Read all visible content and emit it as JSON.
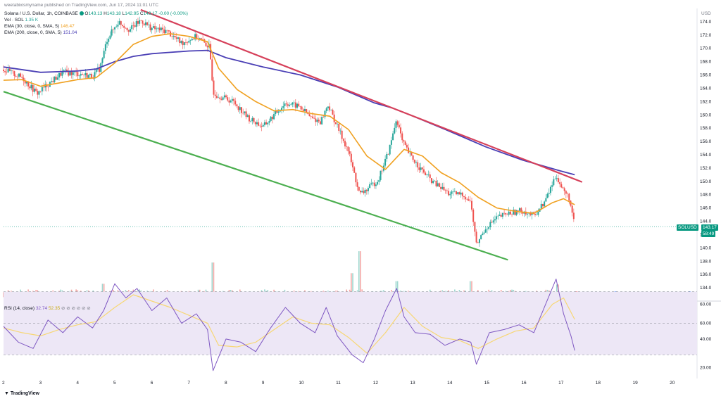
{
  "watermark": "weetabixismyname published on TradingView.com, Jun 17, 2024 11:01 UTC",
  "legend": {
    "symbol": "Solana / U.S. Dollar, 1h, COINBASE",
    "o_label": "O",
    "o": "143.13",
    "h_label": "H",
    "h": "143.18",
    "l_label": "L",
    "l": "142.95",
    "c_label": "C",
    "c": "143.17",
    "chg": "-0.00 (-0.00%)",
    "vol_label": "Vol · SOL",
    "vol": "1.35 K",
    "ema30_label": "EMA (30, close, 0, SMA, 5)",
    "ema30": "146.47",
    "ema200_label": "EMA (200, close, 0, SMA, 5)",
    "ema200": "151.04",
    "rsi_label": "RSI (14, close)",
    "rsi": "32.74",
    "rsi_ma": "52.35"
  },
  "currency": "USD",
  "price_badge": {
    "symbol": "SOLUSD",
    "price": "143.17",
    "timer": "58:49"
  },
  "footer_brand": "TradingView",
  "colors": {
    "up": "#26a69a",
    "down": "#ef5350",
    "ema30": "#f0a121",
    "ema200": "#4a3fb5",
    "upper_trend": "#d6405a",
    "lower_trend": "#4caf50",
    "rsi_line": "#7e57c2",
    "rsi_ma": "#f7d774",
    "rsi_band": "#ede7f6"
  },
  "chart_data": [
    {
      "type": "candlestick",
      "title": "Solana / U.S. Dollar, 1h, COINBASE",
      "ylim": [
        132,
        176
      ],
      "y_ticks": [
        134,
        136,
        138,
        140,
        142,
        144,
        146,
        148,
        150,
        152,
        154,
        156,
        158,
        160,
        162,
        164,
        166,
        168,
        170,
        172,
        174
      ],
      "x_ticks": [
        "2",
        "3",
        "4",
        "5",
        "6",
        "7",
        "8",
        "9",
        "10",
        "11",
        "12",
        "13",
        "14",
        "15",
        "16",
        "17",
        "18",
        "19",
        "20"
      ],
      "x_tick_values": [
        2,
        3,
        4,
        5,
        6,
        7,
        8,
        9,
        10,
        11,
        12,
        13,
        14,
        15,
        16,
        17,
        18,
        19,
        20
      ],
      "xlim": [
        2,
        20.7
      ],
      "price_path": [
        [
          2.0,
          166.8
        ],
        [
          2.5,
          165.6
        ],
        [
          2.9,
          163.2
        ],
        [
          3.2,
          164.6
        ],
        [
          3.6,
          166.4
        ],
        [
          4.0,
          166.2
        ],
        [
          4.4,
          165.8
        ],
        [
          4.6,
          167.0
        ],
        [
          4.8,
          171.5
        ],
        [
          5.1,
          174.0
        ],
        [
          5.4,
          172.8
        ],
        [
          5.7,
          174.2
        ],
        [
          6.0,
          173.0
        ],
        [
          6.4,
          172.6
        ],
        [
          6.8,
          170.8
        ],
        [
          7.2,
          171.8
        ],
        [
          7.55,
          170.2
        ],
        [
          7.65,
          163.5
        ],
        [
          7.75,
          163.0
        ],
        [
          8.2,
          162.0
        ],
        [
          8.6,
          159.5
        ],
        [
          9.0,
          158.2
        ],
        [
          9.3,
          160.0
        ],
        [
          9.6,
          161.8
        ],
        [
          10.0,
          161.2
        ],
        [
          10.3,
          159.5
        ],
        [
          10.55,
          159.0
        ],
        [
          10.75,
          161.5
        ],
        [
          10.9,
          159.5
        ],
        [
          11.3,
          154.5
        ],
        [
          11.6,
          148.0
        ],
        [
          11.8,
          148.8
        ],
        [
          12.1,
          150.2
        ],
        [
          12.4,
          154.8
        ],
        [
          12.6,
          159.5
        ],
        [
          12.75,
          156.0
        ],
        [
          12.95,
          154.0
        ],
        [
          13.3,
          151.5
        ],
        [
          13.6,
          149.8
        ],
        [
          14.0,
          148.2
        ],
        [
          14.4,
          148.0
        ],
        [
          14.6,
          146.8
        ],
        [
          14.75,
          140.5
        ],
        [
          15.0,
          143.0
        ],
        [
          15.3,
          144.5
        ],
        [
          15.6,
          145.2
        ],
        [
          16.0,
          145.6
        ],
        [
          16.3,
          144.8
        ],
        [
          16.6,
          147.0
        ],
        [
          16.9,
          151.0
        ],
        [
          17.05,
          149.0
        ],
        [
          17.25,
          147.5
        ],
        [
          17.4,
          143.2
        ]
      ],
      "ema30": [
        [
          2.0,
          165.2
        ],
        [
          2.5,
          165.3
        ],
        [
          3.0,
          164.3
        ],
        [
          3.5,
          164.8
        ],
        [
          4.0,
          165.3
        ],
        [
          4.5,
          165.6
        ],
        [
          5.0,
          167.8
        ],
        [
          5.5,
          170.6
        ],
        [
          6.0,
          171.8
        ],
        [
          6.5,
          172.2
        ],
        [
          7.0,
          171.8
        ],
        [
          7.5,
          171.0
        ],
        [
          7.8,
          167.0
        ],
        [
          8.3,
          163.8
        ],
        [
          8.8,
          162.0
        ],
        [
          9.3,
          160.6
        ],
        [
          9.8,
          160.8
        ],
        [
          10.3,
          160.2
        ],
        [
          10.8,
          159.8
        ],
        [
          11.3,
          157.8
        ],
        [
          11.8,
          153.8
        ],
        [
          12.3,
          151.8
        ],
        [
          12.8,
          154.8
        ],
        [
          13.3,
          153.8
        ],
        [
          13.8,
          151.3
        ],
        [
          14.3,
          149.8
        ],
        [
          14.8,
          147.6
        ],
        [
          15.3,
          146.0
        ],
        [
          15.8,
          145.5
        ],
        [
          16.3,
          145.2
        ],
        [
          16.8,
          146.8
        ],
        [
          17.1,
          147.4
        ],
        [
          17.4,
          146.5
        ]
      ],
      "ema200": [
        [
          2.0,
          167.2
        ],
        [
          3.0,
          166.4
        ],
        [
          4.0,
          166.6
        ],
        [
          4.5,
          166.9
        ],
        [
          5.0,
          168.0
        ],
        [
          5.5,
          168.8
        ],
        [
          6.0,
          169.2
        ],
        [
          6.5,
          169.4
        ],
        [
          7.0,
          169.6
        ],
        [
          7.5,
          169.7
        ],
        [
          8.0,
          168.6
        ],
        [
          9.0,
          167.2
        ],
        [
          10.0,
          166.0
        ],
        [
          11.0,
          164.2
        ],
        [
          12.0,
          161.8
        ],
        [
          12.5,
          161.0
        ],
        [
          13.0,
          159.9
        ],
        [
          14.0,
          157.6
        ],
        [
          15.0,
          155.2
        ],
        [
          16.0,
          153.2
        ],
        [
          17.0,
          151.6
        ],
        [
          17.4,
          151.0
        ]
      ],
      "trendlines": [
        {
          "from": [
            5.7,
            175.8
          ],
          "to": [
            17.6,
            149.9
          ],
          "color": "upper_trend"
        },
        {
          "from": [
            2.0,
            163.5
          ],
          "to": [
            15.6,
            138.2
          ],
          "color": "lower_trend"
        }
      ],
      "volume_spikes": [
        [
          7.65,
          137.8
        ],
        [
          11.6,
          139.5
        ],
        [
          11.4,
          136.2
        ],
        [
          12.6,
          135.0
        ],
        [
          14.6,
          135.0
        ],
        [
          4.7,
          134.6
        ],
        [
          16.95,
          134.5
        ]
      ]
    },
    {
      "type": "line",
      "title": "RSI (14, close)",
      "ylim": [
        15,
        64
      ],
      "y_ticks": [
        20,
        40,
        60,
        80
      ],
      "y_tick_values": [
        20,
        40,
        60,
        80
      ],
      "note_ticks_display": "80 shown at top",
      "bands": [
        30,
        70
      ],
      "mid": 50,
      "series": [
        {
          "name": "RSI",
          "points": [
            [
              2.0,
              48
            ],
            [
              2.4,
              38
            ],
            [
              2.8,
              34
            ],
            [
              3.2,
              52
            ],
            [
              3.6,
              44
            ],
            [
              4.0,
              54
            ],
            [
              4.4,
              47
            ],
            [
              4.7,
              58
            ],
            [
              5.0,
              75
            ],
            [
              5.3,
              66
            ],
            [
              5.6,
              72
            ],
            [
              6.0,
              58
            ],
            [
              6.4,
              66
            ],
            [
              6.8,
              50
            ],
            [
              7.2,
              56
            ],
            [
              7.5,
              46
            ],
            [
              7.65,
              20
            ],
            [
              8.0,
              40
            ],
            [
              8.4,
              38
            ],
            [
              8.8,
              32
            ],
            [
              9.2,
              47
            ],
            [
              9.6,
              60
            ],
            [
              10.0,
              50
            ],
            [
              10.4,
              44
            ],
            [
              10.7,
              60
            ],
            [
              11.0,
              42
            ],
            [
              11.4,
              30
            ],
            [
              11.7,
              25
            ],
            [
              12.0,
              40
            ],
            [
              12.3,
              58
            ],
            [
              12.6,
              72
            ],
            [
              12.8,
              54
            ],
            [
              13.1,
              44
            ],
            [
              13.5,
              43
            ],
            [
              13.9,
              36
            ],
            [
              14.3,
              40
            ],
            [
              14.6,
              38
            ],
            [
              14.75,
              24
            ],
            [
              15.1,
              44
            ],
            [
              15.5,
              46
            ],
            [
              15.9,
              49
            ],
            [
              16.3,
              44
            ],
            [
              16.6,
              61
            ],
            [
              16.9,
              78
            ],
            [
              17.1,
              56
            ],
            [
              17.3,
              42
            ],
            [
              17.4,
              32.7
            ]
          ]
        },
        {
          "name": "RSI MA",
          "points": [
            [
              2.0,
              47
            ],
            [
              2.5,
              44
            ],
            [
              3.0,
              42
            ],
            [
              3.5,
              46
            ],
            [
              4.0,
              49
            ],
            [
              4.5,
              51
            ],
            [
              5.0,
              60
            ],
            [
              5.5,
              68
            ],
            [
              6.0,
              64
            ],
            [
              6.5,
              60
            ],
            [
              7.0,
              55
            ],
            [
              7.5,
              50
            ],
            [
              7.8,
              36
            ],
            [
              8.3,
              35
            ],
            [
              8.8,
              38
            ],
            [
              9.3,
              46
            ],
            [
              9.8,
              54
            ],
            [
              10.3,
              50
            ],
            [
              10.8,
              49
            ],
            [
              11.3,
              41
            ],
            [
              11.8,
              31
            ],
            [
              12.3,
              44
            ],
            [
              12.8,
              60
            ],
            [
              13.3,
              48
            ],
            [
              13.8,
              41
            ],
            [
              14.3,
              39
            ],
            [
              14.8,
              34
            ],
            [
              15.3,
              40
            ],
            [
              15.8,
              45
            ],
            [
              16.3,
              47
            ],
            [
              16.8,
              62
            ],
            [
              17.1,
              66
            ],
            [
              17.4,
              52.4
            ]
          ]
        }
      ]
    }
  ]
}
